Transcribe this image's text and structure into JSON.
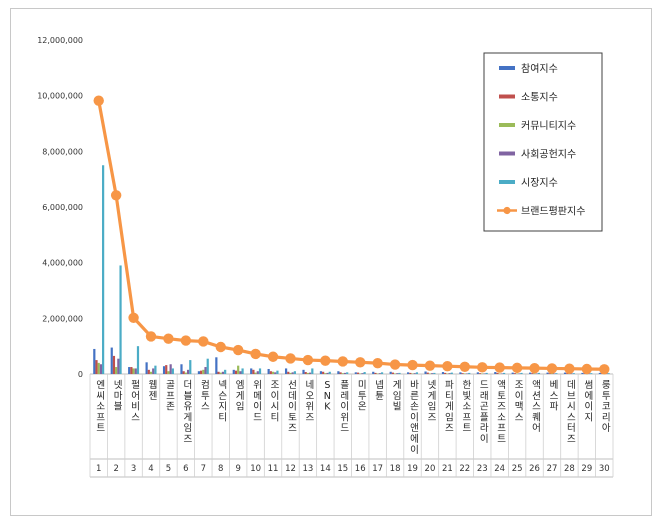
{
  "chart_data": {
    "type": "bar",
    "title": "",
    "xlabel": "",
    "ylabel": "",
    "ylim": [
      0,
      12000000
    ],
    "yticks": [
      "0",
      "2,000,000",
      "4,000,000",
      "6,000,000",
      "8,000,000",
      "10,000,000",
      "12,000,000"
    ],
    "grid": false,
    "legend_position": "top-right",
    "categories": [
      "엔씨소프트",
      "넷마블",
      "펄어비스",
      "웹젠",
      "골프존",
      "더블유게임즈",
      "컴투스",
      "넥슨지티",
      "엠게임",
      "위메이드",
      "조이시티",
      "선데이토즈",
      "네오위즈",
      "SNK",
      "플레이위드",
      "미투온",
      "넵튠",
      "게임빌",
      "바른손이앤에이",
      "넷게임즈",
      "파티게임즈",
      "한빛소프트",
      "드래곤플라이",
      "액토즈소프트",
      "조이맥스",
      "액션스퀘어",
      "베스파",
      "데브시스터즈",
      "썸에이지",
      "룽투코리아"
    ],
    "ranks": [
      "1",
      "2",
      "3",
      "4",
      "5",
      "6",
      "7",
      "8",
      "9",
      "10",
      "11",
      "12",
      "13",
      "14",
      "15",
      "16",
      "17",
      "18",
      "19",
      "20",
      "21",
      "22",
      "23",
      "24",
      "25",
      "26",
      "27",
      "28",
      "29",
      "30"
    ],
    "series": [
      {
        "name": "참여지수",
        "kind": "bar",
        "color": "#4472c4",
        "values": [
          900000,
          950000,
          250000,
          420000,
          280000,
          350000,
          100000,
          600000,
          150000,
          200000,
          180000,
          200000,
          150000,
          100000,
          100000,
          60000,
          80000,
          80000,
          60000,
          90000,
          70000,
          60000,
          60000,
          70000,
          50000,
          50000,
          50000,
          50000,
          40000,
          40000
        ]
      },
      {
        "name": "소통지수",
        "kind": "bar",
        "color": "#c0504d",
        "values": [
          500000,
          650000,
          250000,
          150000,
          320000,
          100000,
          120000,
          80000,
          120000,
          150000,
          100000,
          80000,
          70000,
          80000,
          60000,
          50000,
          40000,
          50000,
          40000,
          50000,
          40000,
          30000,
          30000,
          40000,
          30000,
          30000,
          30000,
          30000,
          20000,
          20000
        ]
      },
      {
        "name": "커뮤니티지수",
        "kind": "bar",
        "color": "#9bbb59",
        "values": [
          400000,
          250000,
          200000,
          80000,
          100000,
          50000,
          150000,
          50000,
          300000,
          50000,
          80000,
          40000,
          40000,
          30000,
          30000,
          20000,
          20000,
          20000,
          20000,
          20000,
          20000,
          20000,
          20000,
          20000,
          20000,
          20000,
          20000,
          20000,
          10000,
          10000
        ]
      },
      {
        "name": "사회공헌지수",
        "kind": "bar",
        "color": "#8064a2",
        "values": [
          350000,
          550000,
          200000,
          200000,
          350000,
          150000,
          250000,
          80000,
          100000,
          100000,
          60000,
          60000,
          50000,
          40000,
          40000,
          30000,
          30000,
          30000,
          30000,
          30000,
          30000,
          20000,
          20000,
          20000,
          20000,
          20000,
          20000,
          20000,
          20000,
          20000
        ]
      },
      {
        "name": "시장지수",
        "kind": "bar",
        "color": "#4bacc6",
        "values": [
          7500000,
          3900000,
          1000000,
          300000,
          200000,
          500000,
          550000,
          150000,
          200000,
          200000,
          120000,
          100000,
          200000,
          80000,
          60000,
          70000,
          60000,
          40000,
          60000,
          40000,
          50000,
          40000,
          40000,
          40000,
          40000,
          40000,
          30000,
          30000,
          30000,
          30000
        ]
      },
      {
        "name": "브랜드평판지수",
        "kind": "line",
        "color": "#f79646",
        "values": [
          9820000,
          6420000,
          2020000,
          1350000,
          1270000,
          1200000,
          1170000,
          970000,
          860000,
          720000,
          620000,
          560000,
          500000,
          480000,
          450000,
          420000,
          390000,
          340000,
          320000,
          300000,
          280000,
          260000,
          240000,
          230000,
          220000,
          210000,
          200000,
          190000,
          180000,
          170000
        ]
      }
    ]
  }
}
